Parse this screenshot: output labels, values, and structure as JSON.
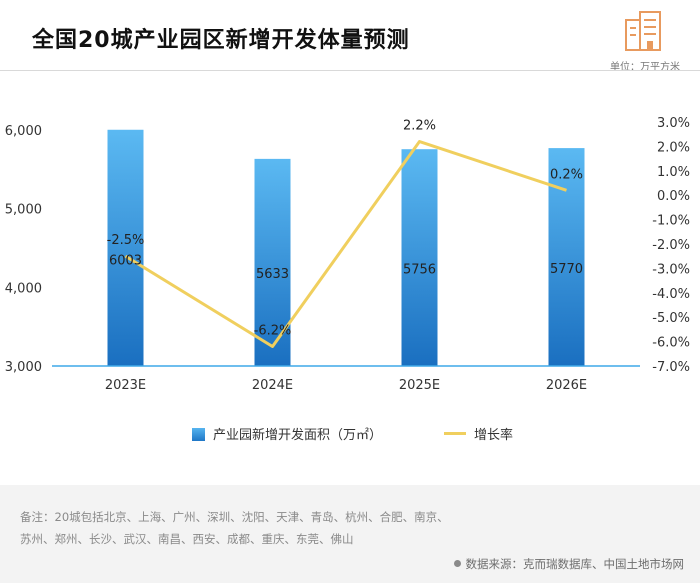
{
  "header": {
    "title": "全国20城产业园区新增开发体量预测",
    "unit": "单位：万平方米",
    "logo_icon": "buildings-icon"
  },
  "legend": {
    "bar_label": "产业园新增开发面积（万㎡）",
    "line_label": "增长率"
  },
  "footer": {
    "note_line1": "备注：20城包括北京、上海、广州、深圳、沈阳、天津、青岛、杭州、合肥、南京、",
    "note_line2": "苏州、郑州、长沙、武汉、南昌、西安、成都、重庆、东莞、佛山",
    "source": "数据来源：克而瑞数据库、中国土地市场网"
  },
  "chart_data": {
    "type": "bar",
    "categories": [
      "2023E",
      "2024E",
      "2025E",
      "2026E"
    ],
    "series": [
      {
        "name": "产业园新增开发面积（万㎡）",
        "type": "bar",
        "axis": "left",
        "values": [
          6003,
          5633,
          5756,
          5770
        ],
        "labels": [
          "6003",
          "5633",
          "5756",
          "5770"
        ],
        "color": "#2b8ad6"
      },
      {
        "name": "增长率",
        "type": "line",
        "axis": "right",
        "values": [
          -2.5,
          -6.2,
          2.2,
          0.2
        ],
        "labels": [
          "-2.5%",
          "-6.2%",
          "2.2%",
          "0.2%"
        ],
        "color": "#f0cf5e"
      }
    ],
    "y_left": {
      "ylim": [
        3000,
        6000
      ],
      "ticks": [
        3000,
        4000,
        5000,
        6000
      ],
      "tick_labels": [
        "3,000",
        "4,000",
        "5,000",
        "6,000"
      ]
    },
    "y_right": {
      "ylim": [
        -7.0,
        3.0
      ],
      "ticks": [
        3.0,
        2.0,
        1.0,
        0.0,
        -1.0,
        -2.0,
        -3.0,
        -4.0,
        -5.0,
        -6.0,
        -7.0
      ],
      "tick_labels": [
        "3.0%",
        "2.0%",
        "1.0%",
        "0.0%",
        "-1.0%",
        "-2.0%",
        "-3.0%",
        "-4.0%",
        "-5.0%",
        "-6.0%",
        "-7.0%"
      ]
    },
    "grid": false,
    "legend_position": "bottom"
  }
}
